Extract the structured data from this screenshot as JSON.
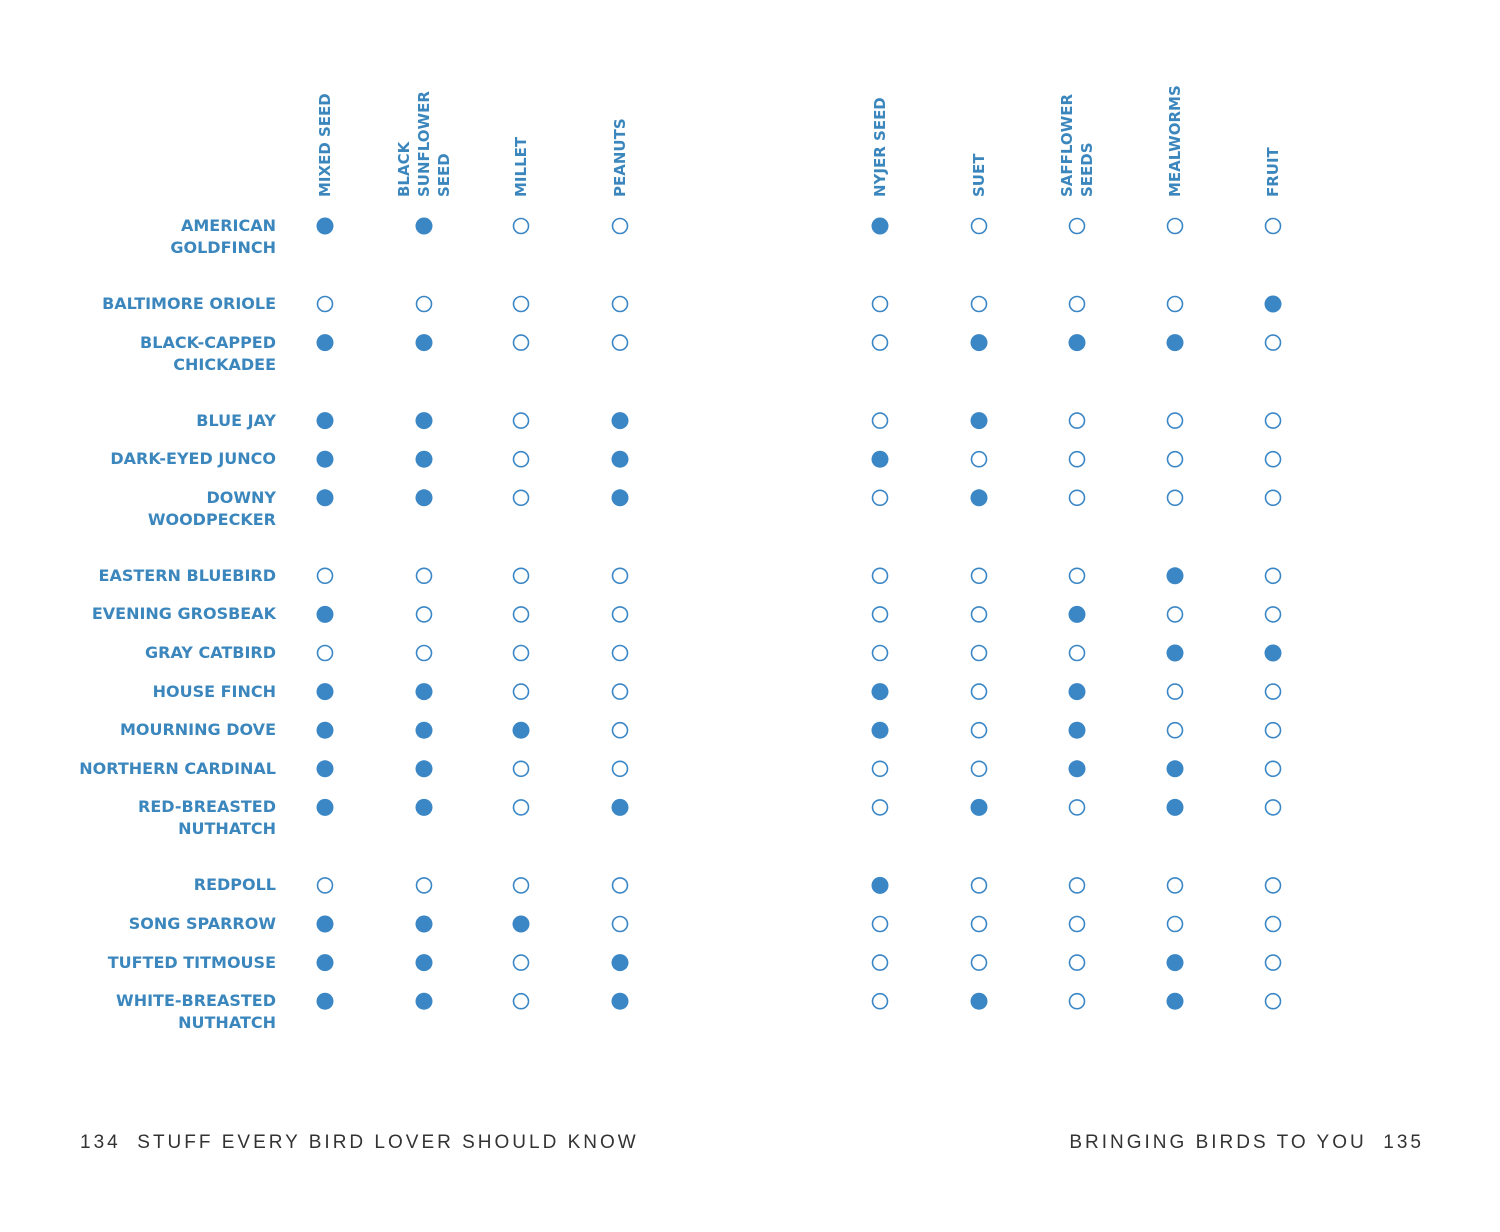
{
  "table": {
    "columns": [
      "MIXED SEED",
      "BLACK\nSUNFLOWER\nSEED",
      "MILLET",
      "PEANUTS",
      "NYJER SEED",
      "SUET",
      "SAFFLOWER\nSEEDS",
      "MEALWORMS",
      "FRUIT"
    ],
    "rows": [
      {
        "bird": "AMERICAN\nGOLDFINCH",
        "foods": [
          true,
          true,
          false,
          false,
          true,
          false,
          false,
          false,
          false
        ]
      },
      {
        "bird": "BALTIMORE ORIOLE",
        "foods": [
          false,
          false,
          false,
          false,
          false,
          false,
          false,
          false,
          true
        ]
      },
      {
        "bird": "BLACK-CAPPED\nCHICKADEE",
        "foods": [
          true,
          true,
          false,
          false,
          false,
          true,
          true,
          true,
          false
        ]
      },
      {
        "bird": "BLUE JAY",
        "foods": [
          true,
          true,
          false,
          true,
          false,
          true,
          false,
          false,
          false
        ]
      },
      {
        "bird": "DARK-EYED JUNCO",
        "foods": [
          true,
          true,
          false,
          true,
          true,
          false,
          false,
          false,
          false
        ]
      },
      {
        "bird": "DOWNY\nWOODPECKER",
        "foods": [
          true,
          true,
          false,
          true,
          false,
          true,
          false,
          false,
          false
        ]
      },
      {
        "bird": "EASTERN BLUEBIRD",
        "foods": [
          false,
          false,
          false,
          false,
          false,
          false,
          false,
          true,
          false
        ]
      },
      {
        "bird": "EVENING GROSBEAK",
        "foods": [
          true,
          false,
          false,
          false,
          false,
          false,
          true,
          false,
          false
        ]
      },
      {
        "bird": "GRAY CATBIRD",
        "foods": [
          false,
          false,
          false,
          false,
          false,
          false,
          false,
          true,
          true
        ]
      },
      {
        "bird": "HOUSE FINCH",
        "foods": [
          true,
          true,
          false,
          false,
          true,
          false,
          true,
          false,
          false
        ]
      },
      {
        "bird": "MOURNING DOVE",
        "foods": [
          true,
          true,
          true,
          false,
          true,
          false,
          true,
          false,
          false
        ]
      },
      {
        "bird": "NORTHERN CARDINAL",
        "foods": [
          true,
          true,
          false,
          false,
          false,
          false,
          true,
          true,
          false
        ]
      },
      {
        "bird": "RED-BREASTED\nNUTHATCH",
        "foods": [
          true,
          true,
          false,
          true,
          false,
          true,
          false,
          true,
          false
        ]
      },
      {
        "bird": "REDPOLL",
        "foods": [
          false,
          false,
          false,
          false,
          true,
          false,
          false,
          false,
          false
        ]
      },
      {
        "bird": "SONG SPARROW",
        "foods": [
          true,
          true,
          true,
          false,
          false,
          false,
          false,
          false,
          false
        ]
      },
      {
        "bird": "TUFTED TITMOUSE",
        "foods": [
          true,
          true,
          false,
          true,
          false,
          false,
          false,
          true,
          false
        ]
      },
      {
        "bird": "WHITE-BREASTED\nNUTHATCH",
        "foods": [
          true,
          true,
          false,
          true,
          false,
          true,
          false,
          true,
          false
        ]
      }
    ]
  },
  "footer": {
    "left_page": 134,
    "left_title": "STUFF EVERY BIRD LOVER SHOULD KNOW",
    "right_title": "BRINGING BIRDS TO YOU",
    "right_page": 135
  }
}
